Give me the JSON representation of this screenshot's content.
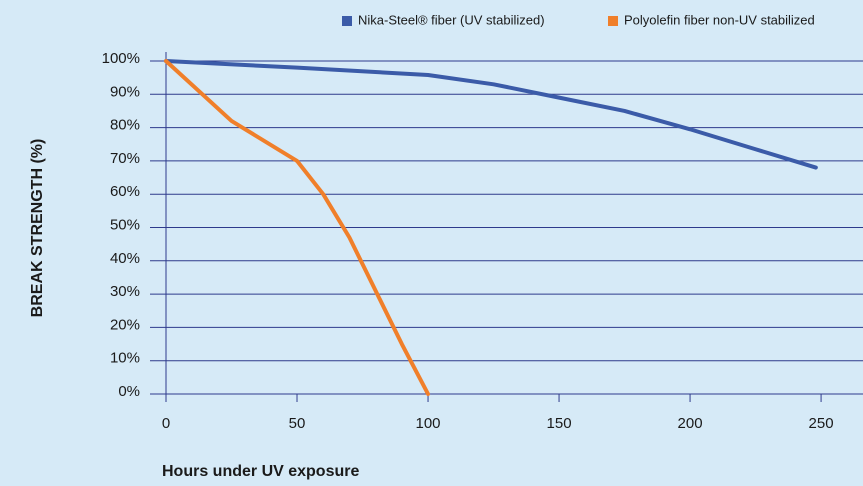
{
  "chart_data": {
    "type": "line",
    "xlabel": "Hours under UV exposure",
    "ylabel": "BREAK STRENGTH (%)",
    "xlim": [
      0,
      266
    ],
    "xticks": [
      0,
      50,
      100,
      150,
      200,
      250
    ],
    "ylim": [
      0,
      100
    ],
    "yticks": [
      {
        "value": 0,
        "label": "0%"
      },
      {
        "value": 10,
        "label": "10%"
      },
      {
        "value": 20,
        "label": "20%"
      },
      {
        "value": 30,
        "label": "30%"
      },
      {
        "value": 40,
        "label": "40%"
      },
      {
        "value": 50,
        "label": "50%"
      },
      {
        "value": 60,
        "label": "60%"
      },
      {
        "value": 70,
        "label": "70%"
      },
      {
        "value": 80,
        "label": "80%"
      },
      {
        "value": 90,
        "label": "90%"
      },
      {
        "value": 100,
        "label": "100%"
      }
    ],
    "grid": true,
    "legend": "top-right",
    "series": [
      {
        "name": "Nika-Steel® fiber (UV stabilized)",
        "color": "#3b5ba8",
        "x": [
          0,
          50,
          100,
          125,
          150,
          175,
          200,
          225,
          248
        ],
        "values": [
          100,
          98,
          95.8,
          93,
          89,
          85,
          79.5,
          73.5,
          68
        ]
      },
      {
        "name": "Polyolefin fiber non-UV stabilized",
        "color": "#f07f2a",
        "x": [
          0,
          25,
          50,
          60,
          70,
          80,
          90,
          100
        ],
        "values": [
          100,
          82,
          70,
          60,
          47,
          31,
          15,
          0
        ]
      }
    ]
  }
}
